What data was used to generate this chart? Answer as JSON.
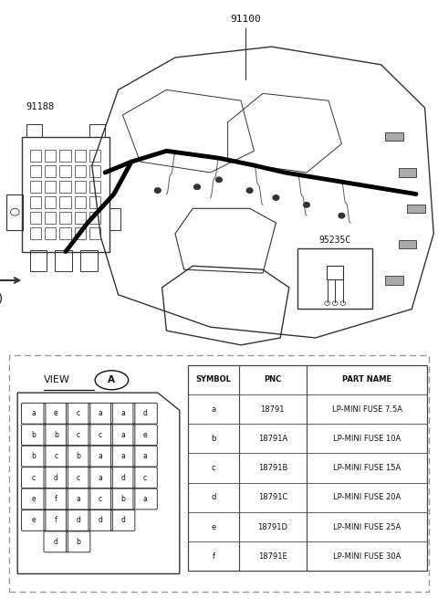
{
  "bg_color": "#ffffff",
  "part_label_91100": "91100",
  "part_label_91188": "91188",
  "part_label_95235C": "95235C",
  "view_label": "VIEW",
  "circle_A_label": "A",
  "table_headers": [
    "SYMBOL",
    "PNC",
    "PART NAME"
  ],
  "table_rows": [
    [
      "a",
      "18791",
      "LP-MINI FUSE 7.5A"
    ],
    [
      "b",
      "18791A",
      "LP-MINI FUSE 10A"
    ],
    [
      "c",
      "18791B",
      "LP-MINI FUSE 15A"
    ],
    [
      "d",
      "18791C",
      "LP-MINI FUSE 20A"
    ],
    [
      "e",
      "18791D",
      "LP-MINI FUSE 25A"
    ],
    [
      "f",
      "18791E",
      "LP-MINI FUSE 30A"
    ]
  ],
  "fuse_grid": [
    [
      "a",
      "e",
      "c",
      "a",
      "a",
      "d"
    ],
    [
      "b",
      "b",
      "c",
      "c",
      "a",
      "e"
    ],
    [
      "b",
      "c",
      "b",
      "a",
      "a",
      "a"
    ],
    [
      "c",
      "d",
      "c",
      "a",
      "d",
      "c"
    ],
    [
      "e",
      "f",
      "a",
      "c",
      "b",
      "a"
    ],
    [
      "e",
      "f",
      "d",
      "d",
      "d",
      ""
    ]
  ],
  "fuse_bottom_row": [
    "d",
    "b"
  ],
  "dashed_border_color": "#999999",
  "line_color": "#333333",
  "text_color": "#111111",
  "table_line_color": "#444444"
}
